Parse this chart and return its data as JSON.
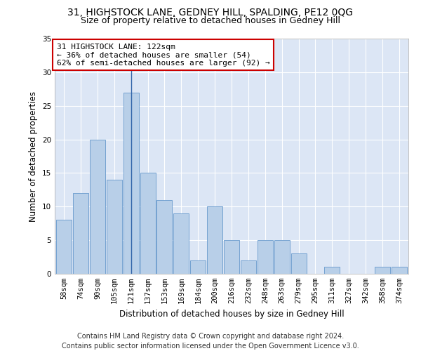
{
  "title1": "31, HIGHSTOCK LANE, GEDNEY HILL, SPALDING, PE12 0QG",
  "title2": "Size of property relative to detached houses in Gedney Hill",
  "xlabel": "Distribution of detached houses by size in Gedney Hill",
  "ylabel": "Number of detached properties",
  "footer1": "Contains HM Land Registry data © Crown copyright and database right 2024.",
  "footer2": "Contains public sector information licensed under the Open Government Licence v3.0.",
  "annotation_line1": "31 HIGHSTOCK LANE: 122sqm",
  "annotation_line2": "← 36% of detached houses are smaller (54)",
  "annotation_line3": "62% of semi-detached houses are larger (92) →",
  "bar_labels": [
    "58sqm",
    "74sqm",
    "90sqm",
    "105sqm",
    "121sqm",
    "137sqm",
    "153sqm",
    "169sqm",
    "184sqm",
    "200sqm",
    "216sqm",
    "232sqm",
    "248sqm",
    "263sqm",
    "279sqm",
    "295sqm",
    "311sqm",
    "327sqm",
    "342sqm",
    "358sqm",
    "374sqm"
  ],
  "bar_values": [
    8,
    12,
    20,
    14,
    27,
    15,
    11,
    9,
    2,
    10,
    5,
    2,
    5,
    5,
    3,
    0,
    1,
    0,
    0,
    1,
    1
  ],
  "bar_color": "#b8cfe8",
  "bar_edge_color": "#6699cc",
  "marker_bar_index": 4,
  "marker_color": "#3366aa",
  "ylim": [
    0,
    35
  ],
  "yticks": [
    0,
    5,
    10,
    15,
    20,
    25,
    30,
    35
  ],
  "bg_color": "#dce6f5",
  "grid_color": "#ffffff",
  "fig_bg_color": "#ffffff",
  "annotation_box_color": "#ffffff",
  "annotation_box_edge": "#cc0000",
  "title_fontsize": 10,
  "subtitle_fontsize": 9,
  "axis_label_fontsize": 8.5,
  "tick_fontsize": 7.5,
  "annotation_fontsize": 8,
  "footer_fontsize": 7
}
